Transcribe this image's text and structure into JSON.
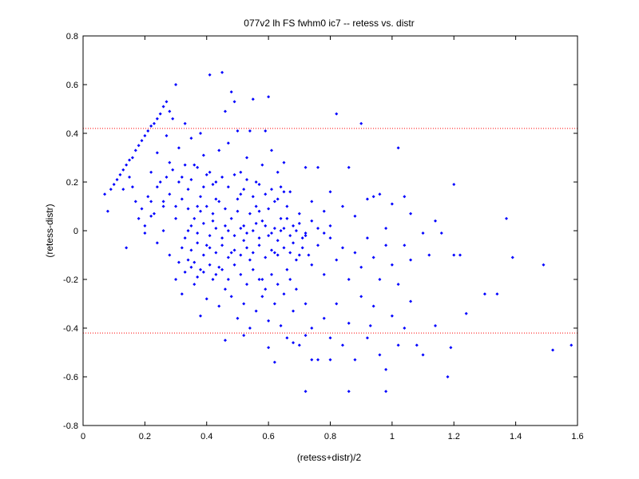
{
  "chart_data": {
    "type": "scatter",
    "title": "077v2 lh FS fwhm0 ic7 -- retess vs. distr",
    "xlabel": "(retess+distr)/2",
    "ylabel": "(retess-distr)",
    "xlim": [
      0,
      1.6
    ],
    "ylim": [
      -0.8,
      0.8
    ],
    "xticks": [
      "0",
      "0.2",
      "0.4",
      "0.6",
      "0.8",
      "1",
      "1.2",
      "1.4",
      "1.6"
    ],
    "yticks": [
      "-0.8",
      "-0.6",
      "-0.4",
      "-0.2",
      "0",
      "0.2",
      "0.4",
      "0.6",
      "0.8"
    ],
    "grid": false,
    "marker_color": "#0000ff",
    "reference_line_color": "#ff0000",
    "reference_lines_y": [
      0.42,
      -0.42
    ],
    "points": [
      [
        0.07,
        0.15
      ],
      [
        0.08,
        0.08
      ],
      [
        0.09,
        0.17
      ],
      [
        0.1,
        0.19
      ],
      [
        0.11,
        0.21
      ],
      [
        0.12,
        0.23
      ],
      [
        0.13,
        0.25
      ],
      [
        0.14,
        0.27
      ],
      [
        0.15,
        0.29
      ],
      [
        0.16,
        0.3
      ],
      [
        0.17,
        0.33
      ],
      [
        0.18,
        0.35
      ],
      [
        0.19,
        0.37
      ],
      [
        0.2,
        0.39
      ],
      [
        0.21,
        0.41
      ],
      [
        0.22,
        0.43
      ],
      [
        0.23,
        0.44
      ],
      [
        0.24,
        0.46
      ],
      [
        0.25,
        0.48
      ],
      [
        0.26,
        0.51
      ],
      [
        0.27,
        0.53
      ],
      [
        0.28,
        0.49
      ],
      [
        0.13,
        0.17
      ],
      [
        0.14,
        -0.07
      ],
      [
        0.15,
        0.22
      ],
      [
        0.16,
        0.18
      ],
      [
        0.17,
        0.12
      ],
      [
        0.18,
        0.05
      ],
      [
        0.19,
        0.09
      ],
      [
        0.2,
        0.02
      ],
      [
        0.21,
        0.14
      ],
      [
        0.22,
        0.24
      ],
      [
        0.23,
        0.07
      ],
      [
        0.24,
        0.32
      ],
      [
        0.25,
        0.2
      ],
      [
        0.26,
        0.12
      ],
      [
        0.27,
        0.39
      ],
      [
        0.28,
        0.28
      ],
      [
        0.29,
        0.46
      ],
      [
        0.3,
        0.6
      ],
      [
        0.31,
        0.34
      ],
      [
        0.32,
        0.22
      ],
      [
        0.33,
        0.44
      ],
      [
        0.34,
        0.17
      ],
      [
        0.35,
        0.38
      ],
      [
        0.36,
        0.27
      ],
      [
        0.37,
        0.1
      ],
      [
        0.38,
        0.4
      ],
      [
        0.39,
        0.31
      ],
      [
        0.4,
        0.23
      ],
      [
        0.41,
        0.64
      ],
      [
        0.42,
        0.19
      ],
      [
        0.43,
        0.13
      ],
      [
        0.44,
        0.33
      ],
      [
        0.45,
        0.65
      ],
      [
        0.46,
        0.49
      ],
      [
        0.47,
        0.36
      ],
      [
        0.48,
        0.57
      ],
      [
        0.49,
        0.53
      ],
      [
        0.5,
        0.41
      ],
      [
        0.51,
        0.24
      ],
      [
        0.52,
        0.17
      ],
      [
        0.53,
        0.3
      ],
      [
        0.54,
        0.41
      ],
      [
        0.55,
        0.54
      ],
      [
        0.56,
        0.2
      ],
      [
        0.57,
        0.08
      ],
      [
        0.58,
        0.27
      ],
      [
        0.59,
        0.41
      ],
      [
        0.6,
        0.55
      ],
      [
        0.61,
        0.33
      ],
      [
        0.62,
        0.12
      ],
      [
        0.63,
        0.24
      ],
      [
        0.64,
        0.18
      ],
      [
        0.65,
        0.28
      ],
      [
        0.66,
        0.05
      ],
      [
        0.67,
        0.16
      ],
      [
        0.7,
        0.03
      ],
      [
        0.72,
        0.26
      ],
      [
        0.74,
        0.12
      ],
      [
        0.76,
        0.26
      ],
      [
        0.78,
        0.08
      ],
      [
        0.8,
        0.16
      ],
      [
        0.82,
        0.48
      ],
      [
        0.84,
        0.1
      ],
      [
        0.86,
        0.26
      ],
      [
        0.88,
        0.06
      ],
      [
        0.9,
        0.44
      ],
      [
        0.92,
        0.13
      ],
      [
        0.94,
        0.14
      ],
      [
        0.96,
        0.15
      ],
      [
        0.98,
        0.01
      ],
      [
        1.0,
        0.11
      ],
      [
        1.02,
        0.34
      ],
      [
        1.04,
        0.14
      ],
      [
        1.06,
        0.07
      ],
      [
        1.1,
        -0.01
      ],
      [
        1.14,
        0.04
      ],
      [
        1.16,
        -0.01
      ],
      [
        1.2,
        0.19
      ],
      [
        0.2,
        -0.01
      ],
      [
        0.22,
        0.06
      ],
      [
        0.24,
        -0.05
      ],
      [
        0.26,
        0.1
      ],
      [
        0.28,
        -0.1
      ],
      [
        0.3,
        0.05
      ],
      [
        0.32,
        -0.07
      ],
      [
        0.34,
        0.0
      ],
      [
        0.36,
        -0.13
      ],
      [
        0.38,
        0.08
      ],
      [
        0.4,
        -0.06
      ],
      [
        0.42,
        0.04
      ],
      [
        0.44,
        -0.15
      ],
      [
        0.46,
        0.02
      ],
      [
        0.48,
        -0.09
      ],
      [
        0.5,
        0.08
      ],
      [
        0.52,
        -0.04
      ],
      [
        0.54,
        -0.12
      ],
      [
        0.56,
        0.03
      ],
      [
        0.58,
        -0.2
      ],
      [
        0.6,
        -0.02
      ],
      [
        0.62,
        -0.09
      ],
      [
        0.64,
        0.0
      ],
      [
        0.66,
        -0.16
      ],
      [
        0.68,
        -0.05
      ],
      [
        0.7,
        -0.1
      ],
      [
        0.72,
        -0.02
      ],
      [
        0.74,
        -0.14
      ],
      [
        0.76,
        -0.06
      ],
      [
        0.78,
        -0.18
      ],
      [
        0.8,
        -0.03
      ],
      [
        0.82,
        -0.12
      ],
      [
        0.84,
        -0.07
      ],
      [
        0.86,
        -0.2
      ],
      [
        0.88,
        -0.09
      ],
      [
        0.9,
        -0.15
      ],
      [
        0.92,
        -0.03
      ],
      [
        0.94,
        -0.11
      ],
      [
        0.96,
        -0.2
      ],
      [
        0.98,
        -0.06
      ],
      [
        1.0,
        -0.14
      ],
      [
        1.02,
        -0.22
      ],
      [
        1.04,
        -0.06
      ],
      [
        1.06,
        -0.12
      ],
      [
        1.12,
        -0.1
      ],
      [
        1.14,
        -0.39
      ],
      [
        1.2,
        -0.1
      ],
      [
        1.22,
        -0.1
      ],
      [
        1.24,
        -0.34
      ],
      [
        1.3,
        -0.26
      ],
      [
        1.34,
        -0.26
      ],
      [
        1.37,
        0.05
      ],
      [
        1.39,
        -0.11
      ],
      [
        1.49,
        -0.14
      ],
      [
        1.52,
        -0.49
      ],
      [
        1.58,
        -0.47
      ],
      [
        0.3,
        -0.2
      ],
      [
        0.32,
        -0.26
      ],
      [
        0.34,
        -0.12
      ],
      [
        0.36,
        -0.22
      ],
      [
        0.38,
        -0.16
      ],
      [
        0.4,
        -0.28
      ],
      [
        0.42,
        -0.2
      ],
      [
        0.44,
        -0.31
      ],
      [
        0.46,
        -0.24
      ],
      [
        0.48,
        -0.27
      ],
      [
        0.5,
        -0.36
      ],
      [
        0.52,
        -0.3
      ],
      [
        0.54,
        -0.4
      ],
      [
        0.56,
        -0.33
      ],
      [
        0.58,
        -0.27
      ],
      [
        0.6,
        -0.37
      ],
      [
        0.62,
        -0.3
      ],
      [
        0.64,
        -0.39
      ],
      [
        0.66,
        -0.44
      ],
      [
        0.68,
        -0.33
      ],
      [
        0.7,
        -0.47
      ],
      [
        0.72,
        -0.3
      ],
      [
        0.74,
        -0.4
      ],
      [
        0.76,
        -0.53
      ],
      [
        0.78,
        -0.36
      ],
      [
        0.8,
        -0.44
      ],
      [
        0.82,
        -0.3
      ],
      [
        0.84,
        -0.47
      ],
      [
        0.86,
        -0.38
      ],
      [
        0.88,
        -0.53
      ],
      [
        0.9,
        -0.27
      ],
      [
        0.92,
        -0.44
      ],
      [
        0.94,
        -0.31
      ],
      [
        0.96,
        -0.51
      ],
      [
        0.98,
        -0.57
      ],
      [
        1.0,
        -0.35
      ],
      [
        1.02,
        -0.47
      ],
      [
        1.04,
        -0.4
      ],
      [
        1.06,
        -0.29
      ],
      [
        1.08,
        -0.47
      ],
      [
        0.38,
        -0.35
      ],
      [
        0.46,
        -0.45
      ],
      [
        0.52,
        -0.43
      ],
      [
        0.6,
        -0.48
      ],
      [
        0.62,
        -0.54
      ],
      [
        0.68,
        -0.46
      ],
      [
        0.72,
        -0.43
      ],
      [
        0.74,
        -0.53
      ],
      [
        0.8,
        -0.53
      ],
      [
        0.86,
        -0.66
      ],
      [
        0.72,
        -0.66
      ],
      [
        0.98,
        -0.66
      ],
      [
        1.18,
        -0.6
      ],
      [
        1.19,
        -0.48
      ],
      [
        1.1,
        -0.51
      ],
      [
        0.93,
        -0.39
      ],
      [
        0.22,
        0.12
      ],
      [
        0.24,
        0.18
      ],
      [
        0.26,
        0.0
      ],
      [
        0.28,
        0.15
      ],
      [
        0.3,
        0.1
      ],
      [
        0.32,
        0.13
      ],
      [
        0.34,
        0.09
      ],
      [
        0.36,
        0.05
      ],
      [
        0.38,
        0.14
      ],
      [
        0.4,
        0.1
      ],
      [
        0.42,
        0.07
      ],
      [
        0.44,
        0.12
      ],
      [
        0.46,
        0.09
      ],
      [
        0.48,
        0.05
      ],
      [
        0.5,
        0.13
      ],
      [
        0.52,
        0.02
      ],
      [
        0.54,
        0.07
      ],
      [
        0.56,
        0.1
      ],
      [
        0.58,
        0.04
      ],
      [
        0.6,
        0.09
      ],
      [
        0.62,
        0.01
      ],
      [
        0.64,
        0.05
      ],
      [
        0.66,
        0.1
      ],
      [
        0.68,
        0.02
      ],
      [
        0.7,
        0.07
      ],
      [
        0.72,
        -0.01
      ],
      [
        0.74,
        0.04
      ],
      [
        0.76,
        0.01
      ],
      [
        0.78,
        -0.01
      ],
      [
        0.8,
        0.02
      ],
      [
        0.33,
        -0.03
      ],
      [
        0.35,
        0.02
      ],
      [
        0.37,
        -0.01
      ],
      [
        0.39,
        0.03
      ],
      [
        0.41,
        -0.02
      ],
      [
        0.43,
        0.01
      ],
      [
        0.45,
        -0.03
      ],
      [
        0.47,
        0.0
      ],
      [
        0.49,
        -0.02
      ],
      [
        0.51,
        0.01
      ],
      [
        0.53,
        -0.01
      ],
      [
        0.55,
        0.0
      ],
      [
        0.57,
        -0.03
      ],
      [
        0.59,
        0.02
      ],
      [
        0.61,
        -0.01
      ],
      [
        0.63,
        -0.04
      ],
      [
        0.65,
        0.01
      ],
      [
        0.67,
        -0.02
      ],
      [
        0.69,
        0.0
      ],
      [
        0.71,
        -0.03
      ],
      [
        0.35,
        -0.08
      ],
      [
        0.37,
        -0.05
      ],
      [
        0.39,
        -0.1
      ],
      [
        0.41,
        -0.07
      ],
      [
        0.43,
        -0.09
      ],
      [
        0.45,
        -0.06
      ],
      [
        0.47,
        -0.11
      ],
      [
        0.49,
        -0.08
      ],
      [
        0.51,
        -0.1
      ],
      [
        0.53,
        -0.07
      ],
      [
        0.55,
        -0.09
      ],
      [
        0.57,
        -0.06
      ],
      [
        0.59,
        -0.11
      ],
      [
        0.61,
        -0.08
      ],
      [
        0.63,
        -0.1
      ],
      [
        0.65,
        -0.07
      ],
      [
        0.67,
        -0.09
      ],
      [
        0.69,
        -0.12
      ],
      [
        0.71,
        -0.07
      ],
      [
        0.73,
        -0.1
      ],
      [
        0.27,
        0.22
      ],
      [
        0.29,
        0.25
      ],
      [
        0.31,
        0.2
      ],
      [
        0.33,
        0.27
      ],
      [
        0.35,
        0.21
      ],
      [
        0.37,
        0.26
      ],
      [
        0.39,
        0.18
      ],
      [
        0.41,
        0.24
      ],
      [
        0.43,
        0.2
      ],
      [
        0.45,
        0.22
      ],
      [
        0.47,
        0.18
      ],
      [
        0.49,
        0.23
      ],
      [
        0.51,
        0.15
      ],
      [
        0.53,
        0.21
      ],
      [
        0.55,
        0.14
      ],
      [
        0.57,
        0.19
      ],
      [
        0.59,
        0.15
      ],
      [
        0.61,
        0.17
      ],
      [
        0.63,
        0.13
      ],
      [
        0.65,
        0.16
      ],
      [
        0.31,
        -0.13
      ],
      [
        0.33,
        -0.17
      ],
      [
        0.35,
        -0.15
      ],
      [
        0.37,
        -0.19
      ],
      [
        0.39,
        -0.17
      ],
      [
        0.41,
        -0.14
      ],
      [
        0.43,
        -0.18
      ],
      [
        0.45,
        -0.16
      ],
      [
        0.47,
        -0.2
      ],
      [
        0.49,
        -0.14
      ],
      [
        0.51,
        -0.18
      ],
      [
        0.53,
        -0.22
      ],
      [
        0.55,
        -0.16
      ],
      [
        0.57,
        -0.2
      ],
      [
        0.59,
        -0.24
      ],
      [
        0.61,
        -0.18
      ],
      [
        0.63,
        -0.22
      ],
      [
        0.65,
        -0.26
      ],
      [
        0.67,
        -0.2
      ],
      [
        0.69,
        -0.24
      ]
    ]
  }
}
